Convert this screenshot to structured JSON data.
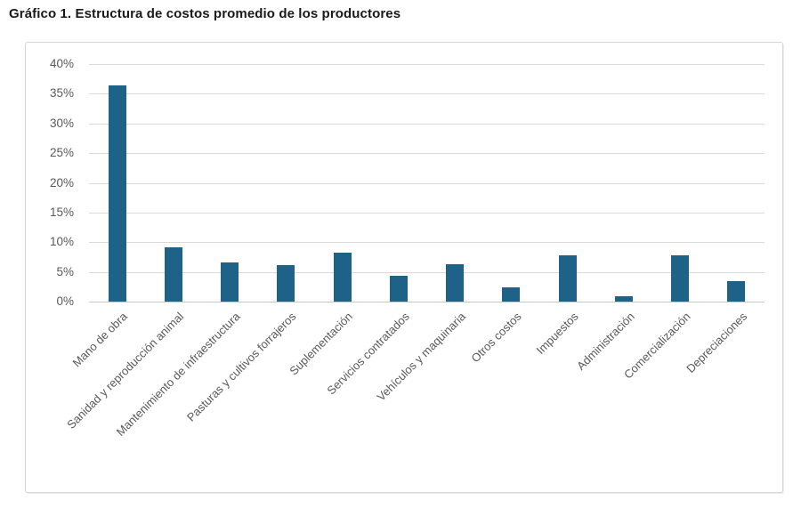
{
  "chart_data": {
    "type": "bar",
    "title": "Gráfico 1. Estructura de costos promedio de los productores",
    "categories": [
      "Mano de obra",
      "Sanidad y reproducción animal",
      "Mantenimiento de infraestructura",
      "Pasturas y cultivos forrajeros",
      "Suplementación",
      "Servicios contratados",
      "Vehículos y maquinaria",
      "Otros costos",
      "Impuestos",
      "Administración",
      "Comercialización",
      "Depreciaciones"
    ],
    "values": [
      36.4,
      9.1,
      6.6,
      6.1,
      8.3,
      4.3,
      6.3,
      2.4,
      7.8,
      0.9,
      7.8,
      3.5
    ],
    "value_unit": "%",
    "xlabel": "",
    "ylabel": "",
    "ylim": [
      0,
      40
    ],
    "ytick_step": 5,
    "ytick_labels": [
      "0%",
      "5%",
      "10%",
      "15%",
      "20%",
      "25%",
      "30%",
      "35%",
      "40%"
    ],
    "grid": true,
    "legend": "none",
    "bar_color": "#1f6287",
    "gridline_color": "#d9d9d9",
    "axis_line_color": "#c9c9c9",
    "tick_label_color": "#595959",
    "frame_border_color": "#d6d6d6",
    "title_color": "#1a1a1a"
  }
}
